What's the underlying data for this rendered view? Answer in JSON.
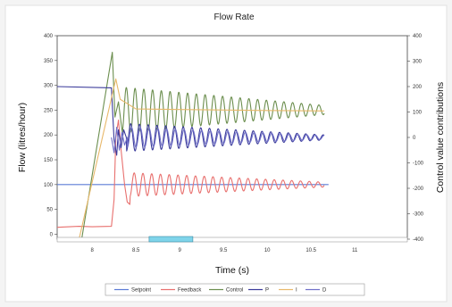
{
  "chart_data": {
    "type": "line",
    "title": "Flow Rate",
    "xlabel": "Time (s)",
    "ylabel": "Flow (litres/hour)",
    "y2label": "Control value contributions",
    "xlim": [
      7.6,
      11.6
    ],
    "ylim": [
      -10,
      400
    ],
    "y2lim": [
      -400,
      400
    ],
    "x_ticks": [
      "8",
      "8.5",
      "9",
      "9.5",
      "10",
      "10.5",
      "11"
    ],
    "y_ticks": [
      "0",
      "50",
      "100",
      "150",
      "200",
      "250",
      "300",
      "350",
      "400"
    ],
    "y2_ticks": [
      "-400",
      "-300",
      "-200",
      "-100",
      "0",
      "100",
      "200",
      "300",
      "400"
    ],
    "grid": false,
    "legend_position": "bottom",
    "scrollbar": {
      "range": [
        8.65,
        9.15
      ]
    },
    "colors": {
      "setpoint": "#5b7bd6",
      "feedback": "#e8706e",
      "control": "#6b8e4e",
      "p": "#3a3a9a",
      "i": "#e8b86a",
      "d": "#7070c8",
      "scrollbar": "#7fd4ea"
    },
    "series": [
      {
        "name": "Setpoint",
        "color_key": "setpoint",
        "axis": "left",
        "points": [
          [
            7.6,
            100
          ],
          [
            10.7,
            100
          ]
        ]
      },
      {
        "name": "Feedback",
        "color_key": "feedback",
        "axis": "left",
        "points": [
          [
            7.6,
            14
          ],
          [
            7.85,
            16
          ],
          [
            8.0,
            15
          ],
          [
            8.22,
            16
          ],
          [
            8.25,
            70
          ],
          [
            8.27,
            195
          ],
          [
            8.3,
            230
          ],
          [
            8.33,
            170
          ],
          [
            8.37,
            100
          ],
          [
            8.4,
            65
          ],
          [
            8.43,
            60
          ]
        ],
        "oscillation": {
          "x_start": 8.43,
          "x_end": 10.65,
          "period": 0.1,
          "center": 100,
          "amp_start": 24,
          "amp_end": 5
        }
      },
      {
        "name": "Control",
        "color_key": "control",
        "axis": "right",
        "points": [
          [
            7.88,
            -400
          ],
          [
            8.23,
            335
          ],
          [
            8.26,
            80
          ],
          [
            8.3,
            140
          ],
          [
            8.34,
            30
          ]
        ],
        "oscillation": {
          "x_start": 8.34,
          "x_end": 10.65,
          "period": 0.1,
          "center": 108,
          "amp_start": 90,
          "amp_end": 18
        }
      },
      {
        "name": "P",
        "color_key": "p",
        "axis": "right",
        "points": [
          [
            7.6,
            200
          ],
          [
            8.22,
            195
          ],
          [
            8.25,
            -10
          ],
          [
            8.28,
            -70
          ],
          [
            8.3,
            30
          ],
          [
            8.33,
            -40
          ],
          [
            8.36,
            30
          ],
          [
            8.39,
            0
          ]
        ],
        "oscillation": {
          "x_start": 8.39,
          "x_end": 10.65,
          "period": 0.1,
          "center": 0,
          "amp_start": 55,
          "amp_end": 10
        }
      },
      {
        "name": "I",
        "color_key": "i",
        "axis": "right",
        "points": [
          [
            7.85,
            -400
          ],
          [
            8.27,
            230
          ],
          [
            8.32,
            150
          ],
          [
            8.5,
            112
          ],
          [
            9.0,
            110
          ],
          [
            10.0,
            106
          ],
          [
            10.65,
            104
          ]
        ]
      },
      {
        "name": "D",
        "color_key": "d",
        "axis": "right",
        "points": [
          [
            8.22,
            0
          ],
          [
            8.25,
            -60
          ],
          [
            8.28,
            40
          ],
          [
            8.31,
            -50
          ],
          [
            8.34,
            20
          ],
          [
            8.37,
            -30
          ],
          [
            8.4,
            0
          ]
        ],
        "oscillation": {
          "x_start": 8.4,
          "x_end": 10.65,
          "period": 0.1,
          "center": 0,
          "amp_start": 40,
          "amp_end": 8
        }
      }
    ]
  }
}
